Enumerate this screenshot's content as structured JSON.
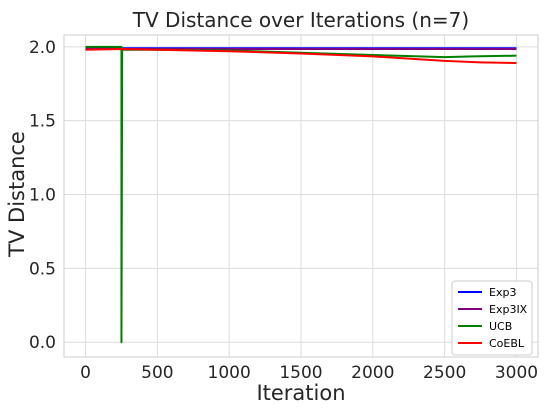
{
  "chart_data": {
    "type": "line",
    "title": "TV Distance over Iterations (n=7)",
    "xlabel": "Iteration",
    "ylabel": "TV Distance",
    "xlim": [
      -150,
      3150
    ],
    "ylim": [
      -0.1,
      2.08
    ],
    "xticks": [
      0,
      500,
      1000,
      1500,
      2000,
      2500,
      3000
    ],
    "yticks": [
      0.0,
      0.5,
      1.0,
      1.5,
      2.0
    ],
    "xtick_labels": [
      "0",
      "500",
      "1000",
      "1500",
      "2000",
      "2500",
      "3000"
    ],
    "ytick_labels": [
      "0.0",
      "0.5",
      "1.0",
      "1.5",
      "2.0"
    ],
    "grid": true,
    "legend_position": "bottom-right",
    "series": [
      {
        "name": "Exp3",
        "color": "#0000ff",
        "x": [
          0,
          500,
          1000,
          1500,
          2000,
          2500,
          3000
        ],
        "y": [
          1.99,
          1.99,
          1.99,
          1.99,
          1.99,
          1.99,
          1.99
        ]
      },
      {
        "name": "Exp3IX",
        "color": "#800080",
        "x": [
          0,
          500,
          1000,
          1500,
          2000,
          2500,
          3000
        ],
        "y": [
          1.985,
          1.985,
          1.985,
          1.985,
          1.985,
          1.985,
          1.985
        ]
      },
      {
        "name": "UCB",
        "color": "#008000",
        "x": [
          0,
          245,
          250,
          250,
          255,
          500,
          1000,
          1500,
          2000,
          2500,
          2700,
          3000
        ],
        "y": [
          2.0,
          2.0,
          2.0,
          0.0,
          1.98,
          1.98,
          1.975,
          1.96,
          1.945,
          1.93,
          1.935,
          1.94
        ]
      },
      {
        "name": "CoEBL",
        "color": "#ff0000",
        "x": [
          0,
          250,
          500,
          1000,
          1500,
          2000,
          2500,
          2750,
          3000
        ],
        "y": [
          1.98,
          1.985,
          1.98,
          1.97,
          1.955,
          1.935,
          1.905,
          1.895,
          1.89
        ]
      }
    ]
  }
}
